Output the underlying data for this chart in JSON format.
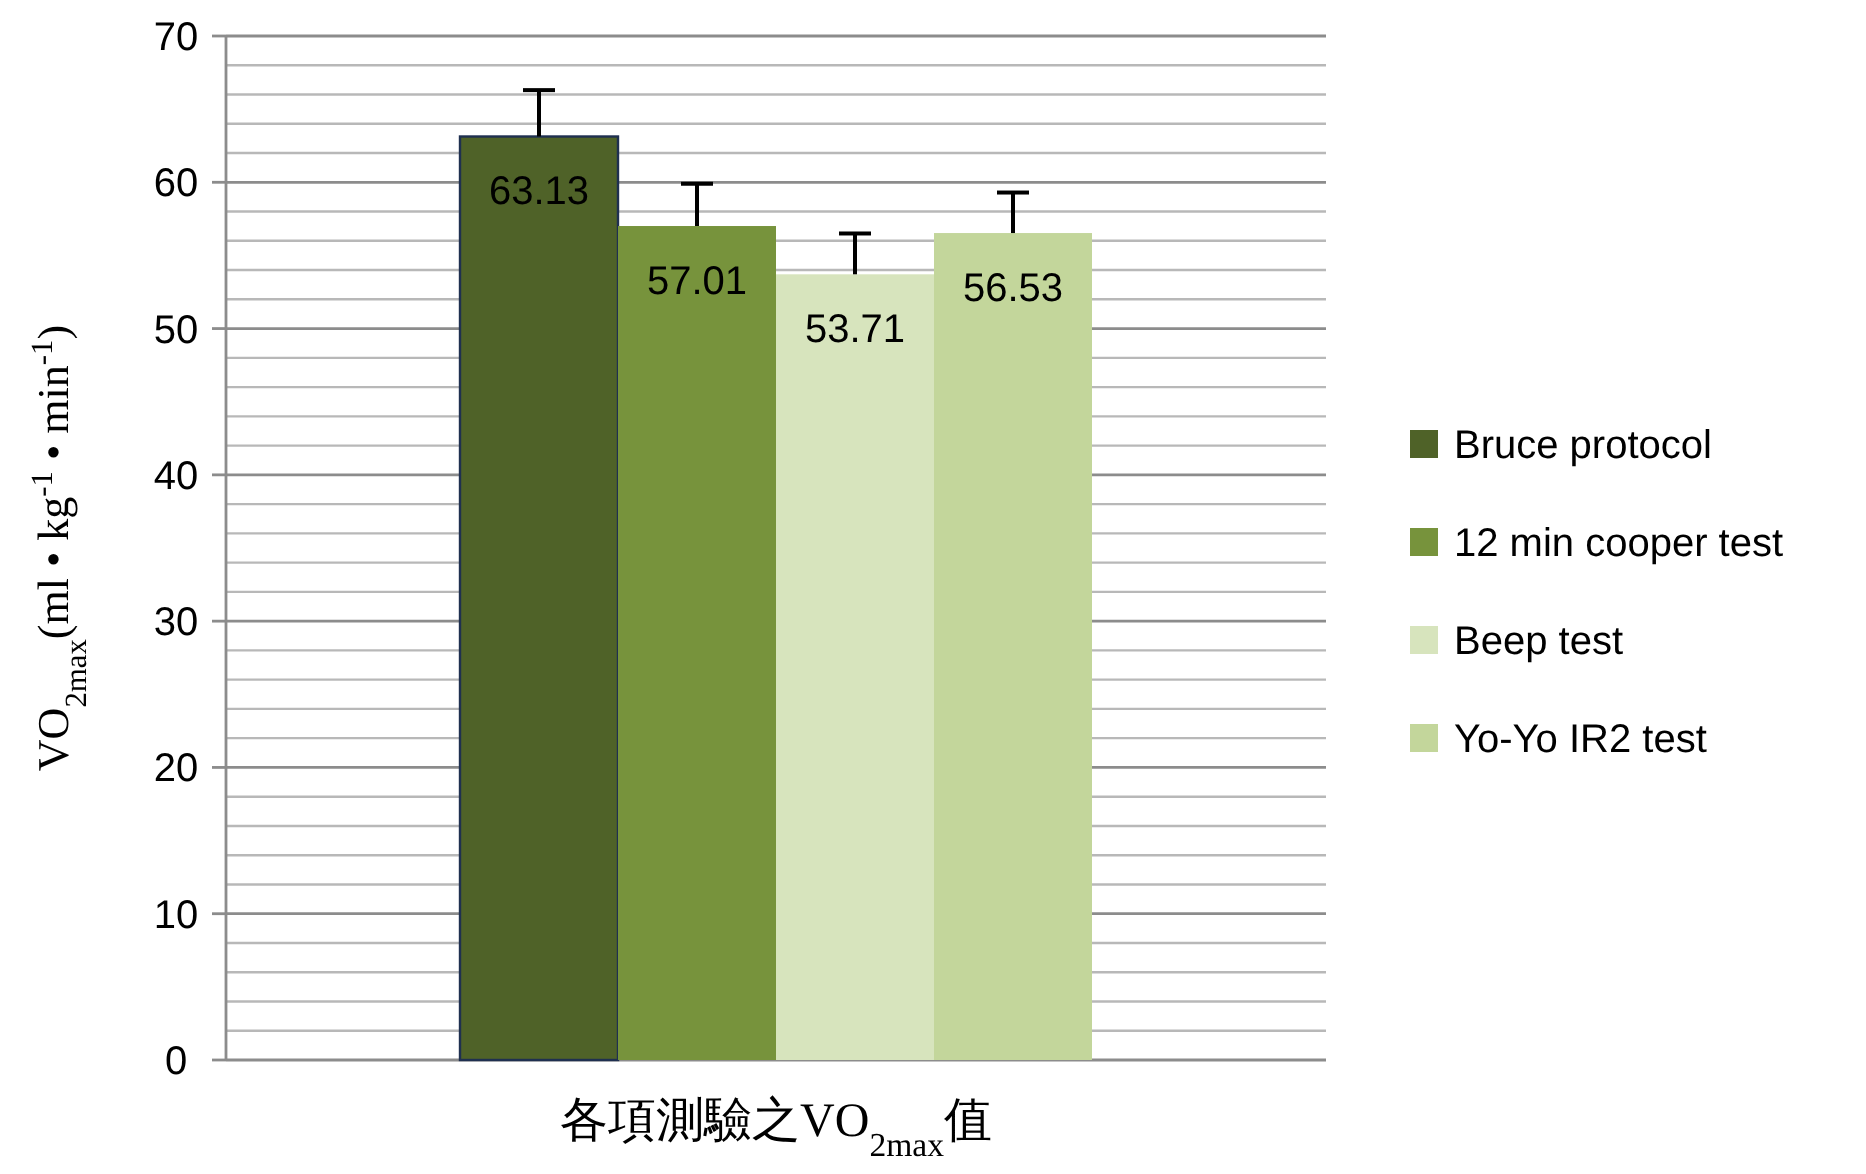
{
  "chart_data": {
    "type": "bar",
    "xlabel": "各項測驗之VO$_{2max}$值",
    "ylabel": "VO$_{2max}$(ml • kg$^{-1}$ • min$^{-1}$)",
    "categories": [
      null
    ],
    "series": [
      {
        "name": "Bruce protocol",
        "color": "#4f6228",
        "values": [
          63.13
        ],
        "errors": [
          [
            63.13,
            66.3
          ]
        ]
      },
      {
        "name": "12 min cooper test",
        "color": "#77933c",
        "values": [
          57.01
        ],
        "errors": [
          [
            57.01,
            59.9
          ]
        ]
      },
      {
        "name": "Beep test",
        "color": "#d7e4bd",
        "values": [
          53.71
        ],
        "errors": [
          [
            53.71,
            56.5
          ]
        ]
      },
      {
        "name": "Yo-Yo IR2 test",
        "color": "#c3d69b",
        "values": [
          56.53
        ],
        "errors": [
          [
            56.53,
            59.3
          ]
        ]
      }
    ],
    "ylim": [
      0,
      70
    ],
    "yticks": [
      0,
      {
        "value": 2,
        "label": null
      },
      {
        "value": 4,
        "label": null
      },
      {
        "value": 6,
        "label": null
      },
      {
        "value": 8,
        "label": null
      },
      10,
      {
        "value": 12,
        "label": null
      },
      {
        "value": 14,
        "label": null
      },
      {
        "value": 16,
        "label": null
      },
      {
        "value": 18,
        "label": null
      },
      20,
      {
        "value": 22,
        "label": null
      },
      {
        "value": 24,
        "label": null
      },
      {
        "value": 26,
        "label": null
      },
      {
        "value": 28,
        "label": null
      },
      30,
      {
        "value": 32,
        "label": null
      },
      {
        "value": 34,
        "label": null
      },
      {
        "value": 36,
        "label": null
      },
      {
        "value": 38,
        "label": null
      },
      40,
      {
        "value": 42,
        "label": null
      },
      {
        "value": 44,
        "label": null
      },
      {
        "value": 46,
        "label": null
      },
      {
        "value": 48,
        "label": null
      },
      50,
      {
        "value": 52,
        "label": null
      },
      {
        "value": 54,
        "label": null
      },
      {
        "value": 56,
        "label": null
      },
      {
        "value": 58,
        "label": null
      },
      60,
      {
        "value": 62,
        "label": null
      },
      {
        "value": 64,
        "label": null
      },
      {
        "value": 66,
        "label": null
      },
      {
        "value": 68,
        "label": null
      },
      70
    ],
    "grid": "y",
    "legend": "right",
    "data_labels": true
  }
}
